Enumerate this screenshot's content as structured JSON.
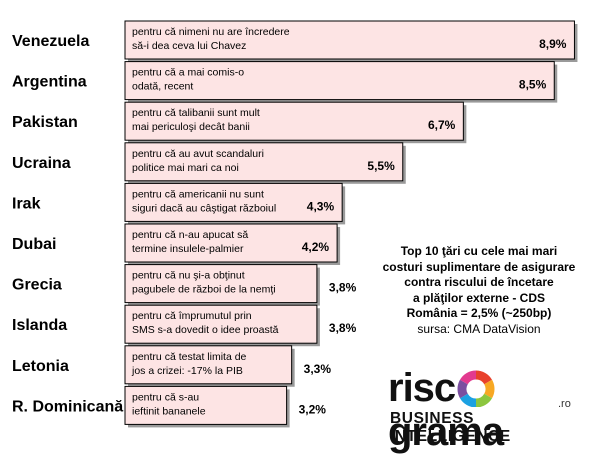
{
  "chart_data": {
    "type": "bar",
    "orientation": "horizontal",
    "categories": [
      "Venezuela",
      "Argentina",
      "Pakistan",
      "Ucraina",
      "Irak",
      "Dubai",
      "Grecia",
      "Islanda",
      "Letonia",
      "R. Dominicană"
    ],
    "values": [
      8.9,
      8.5,
      6.7,
      5.5,
      4.3,
      4.2,
      3.8,
      3.8,
      3.3,
      3.2
    ],
    "value_labels": [
      "8,9%",
      "8,5%",
      "6,7%",
      "5,5%",
      "4,3%",
      "4,2%",
      "3,8%",
      "3,8%",
      "3,3%",
      "3,2%"
    ],
    "annotations": [
      [
        "pentru că nimeni nu are încredere",
        "să-i dea ceva lui Chavez"
      ],
      [
        "pentru că a mai comis-o",
        "odată, recent"
      ],
      [
        "pentru că talibanii sunt mult",
        "mai periculoşi decât banii"
      ],
      [
        "pentru că au avut scandaluri",
        "politice mai mari ca noi"
      ],
      [
        "pentru că americanii nu sunt",
        "siguri dacă au câştigat războiul"
      ],
      [
        "pentru că n-au apucat să",
        "termine insulele-palmier"
      ],
      [
        "pentru că nu şi-a obţinut",
        "pagubele de război de la nemţi"
      ],
      [
        "pentru că împrumutul prin",
        "SMS s-a dovedit o idee proastă"
      ],
      [
        "pentru că testat limita de",
        "jos a crizei: -17% la PIB"
      ],
      [
        "pentru că s-au",
        "ieftinit bananele"
      ]
    ],
    "bar_color": "#fde4e4",
    "bar_border": "#000000",
    "grid": false,
    "legend": "none"
  },
  "info": {
    "line1": "Top 10 ţări cu cele mai mari",
    "line2": "costuri suplimentare de asigurare",
    "line3": "contra riscului de încetare",
    "line4": "a plăţilor externe - CDS",
    "line5": "România = 2,5% (~250bp)",
    "line6": "sursa: CMA DataVision"
  },
  "logo": {
    "word_part1": "risc",
    "word_part2": "grama",
    "domain_suffix": ".ro",
    "tagline": "BUSINESS INTELLIGENCE",
    "ring_colors": [
      "#e8412c",
      "#f7a823",
      "#8cc63f",
      "#1ba1e2",
      "#7b4fa0",
      "#e23a8f"
    ]
  }
}
